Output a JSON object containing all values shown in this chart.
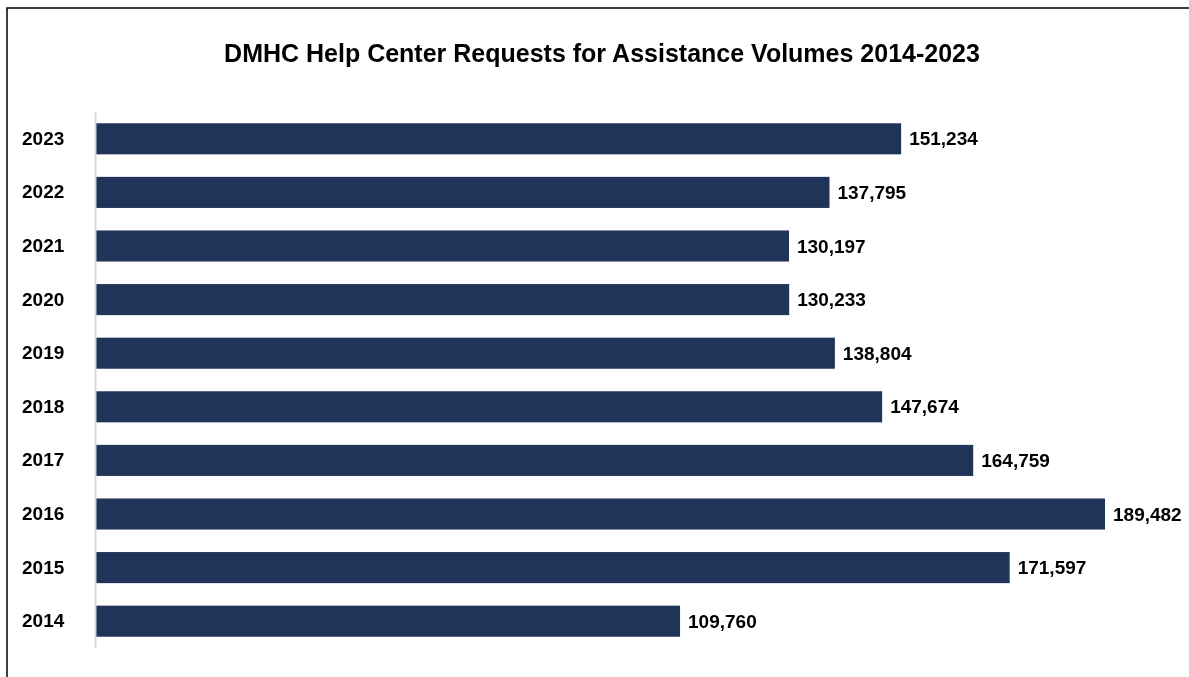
{
  "chart_data": {
    "type": "bar",
    "orientation": "horizontal",
    "title": "DMHC Help Center Requests for Assistance Volumes 2014-2023",
    "categories": [
      "2023",
      "2022",
      "2021",
      "2020",
      "2019",
      "2018",
      "2017",
      "2016",
      "2015",
      "2014"
    ],
    "values": [
      151234,
      137795,
      130197,
      130233,
      138804,
      147674,
      164759,
      189482,
      171597,
      109760
    ],
    "value_labels": [
      "151,234",
      "137,795",
      "130,197",
      "130,233",
      "138,804",
      "147,674",
      "164,759",
      "189,482",
      "171,597",
      "109,760"
    ],
    "color": "#203459"
  }
}
